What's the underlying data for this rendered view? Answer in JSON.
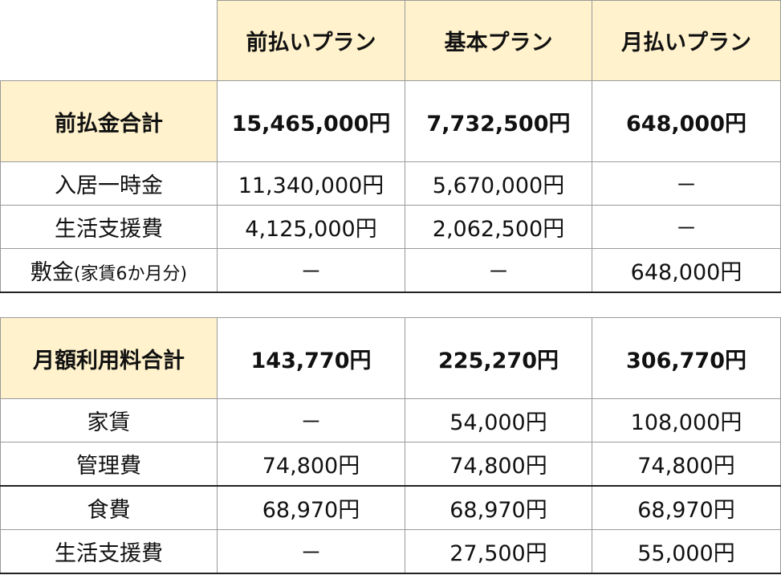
{
  "plans": [
    "前払いプラン",
    "基本プラン",
    "月払いプラン"
  ],
  "sections": [
    {
      "title": "前払金合計",
      "totals": [
        "15,465,000円",
        "7,732,500円",
        "648,000円"
      ],
      "rows": [
        {
          "label": "入居一時金",
          "values": [
            "11,340,000円",
            "5,670,000円",
            "－"
          ]
        },
        {
          "label": "生活支援費",
          "values": [
            "4,125,000円",
            "2,062,500円",
            "－"
          ]
        },
        {
          "label": "敷金",
          "label_note": "(家賃6か月分)",
          "values": [
            "－",
            "－",
            "648,000円"
          ]
        }
      ]
    },
    {
      "title": "月額利用料合計",
      "totals": [
        "143,770円",
        "225,270円",
        "306,770円"
      ],
      "rows": [
        {
          "label": "家賃",
          "values": [
            "－",
            "54,000円",
            "108,000円"
          ]
        },
        {
          "label": "管理費",
          "values": [
            "74,800円",
            "74,800円",
            "74,800円"
          ]
        },
        {
          "label": "食費",
          "values": [
            "68,970円",
            "68,970円",
            "68,970円"
          ]
        },
        {
          "label": "生活支援費",
          "values": [
            "－",
            "27,500円",
            "55,000円"
          ]
        }
      ]
    }
  ]
}
